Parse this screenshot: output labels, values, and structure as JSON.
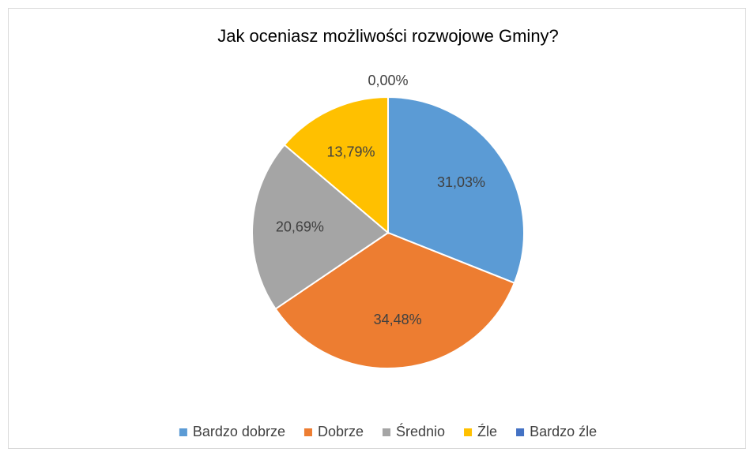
{
  "chart_data": {
    "type": "pie",
    "title": "Jak oceniasz możliwości rozwojowe Gminy?",
    "categories": [
      "Bardzo dobrze",
      "Dobrze",
      "Średnio",
      "Źle",
      "Bardzo źle"
    ],
    "values": [
      31.03,
      34.48,
      20.69,
      13.79,
      0.0
    ],
    "value_labels": [
      "31,03%",
      "34,48%",
      "20,69%",
      "13,79%",
      "0,00%"
    ],
    "colors": [
      "#5b9bd5",
      "#ed7d31",
      "#a5a5a5",
      "#ffc000",
      "#4472c4"
    ],
    "legend": "bottom"
  }
}
